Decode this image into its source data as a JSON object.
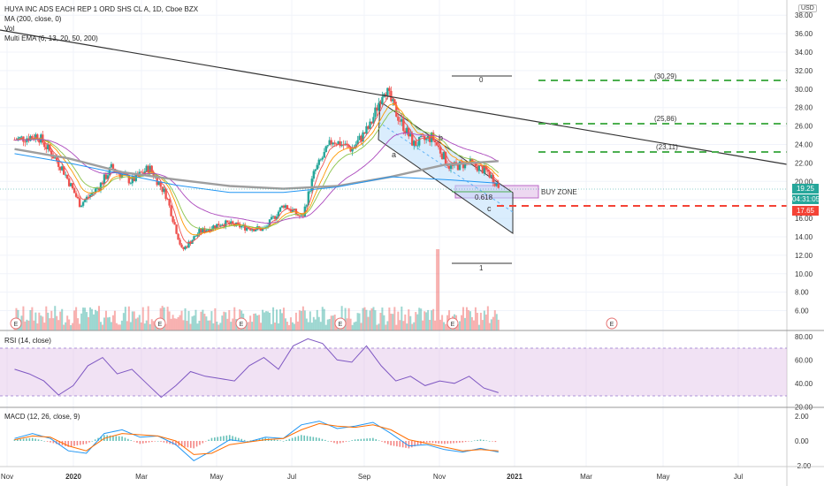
{
  "header": {
    "symbol_title": "HUYA INC ADS EACH REP 1 ORD SHS CL A, 1D, Cboe BZX",
    "indicators": [
      "MA (200, close, 0)",
      "Vol",
      "Multi EMA (6, 13, 20, 50, 200)"
    ],
    "currency": "USD"
  },
  "price_tags": {
    "last": "19.25",
    "countdown": "04:31:05",
    "stop": "17.65"
  },
  "colors": {
    "candle_up": "#26a69a",
    "candle_down": "#ef5350",
    "ma200": "#9e9e9e",
    "ema6": "#ef5350",
    "ema13": "#ff9800",
    "ema20": "#8bc34a",
    "ema50": "#ab47bc",
    "ema200": "#2196f3",
    "rsi": "#7e57c2",
    "macd": "#2196f3",
    "signal": "#ff6d00",
    "target": "#4caf50",
    "stop": "#f44336",
    "channel": "#bbdefb",
    "buy_zone": "#ce93d8"
  },
  "annotations": {
    "buy_zone_label": "BUY ZONE",
    "fib_top": "0",
    "fib_mid": "0.618",
    "fib_bottom": "1",
    "wave_a": "a",
    "wave_b": "b",
    "wave_c": "c",
    "target_1": "(23,11)",
    "target_2": "(25,86)",
    "target_3": "(30,29)",
    "earnings_icon": "E"
  },
  "panels": {
    "rsi_title": "RSI (14, close)",
    "macd_title": "MACD (12, 26, close, 9)"
  },
  "chart_data": [
    {
      "type": "candlestick",
      "title": "HUYA INC ADS EACH REP 1 ORD SHS CL A, 1D, Cboe BZX",
      "x_tick_labels": [
        "Nov",
        "2020",
        "Mar",
        "May",
        "Jul",
        "Sep",
        "Nov",
        "2021",
        "Mar",
        "May",
        "Jul"
      ],
      "y_tick_labels": [
        "6.00",
        "8.00",
        "10.00",
        "12.00",
        "14.00",
        "16.00",
        "18.00",
        "20.00",
        "22.00",
        "24.00",
        "26.00",
        "28.00",
        "30.00",
        "32.00",
        "34.00",
        "36.00",
        "38.00"
      ],
      "ylim": [
        5,
        38.5
      ],
      "price_path": [
        {
          "x": "2019-11-01",
          "y": 24.5
        },
        {
          "x": "2019-11-20",
          "y": 25.0
        },
        {
          "x": "2019-12-10",
          "y": 21.5
        },
        {
          "x": "2019-12-25",
          "y": 17.5
        },
        {
          "x": "2020-01-10",
          "y": 19.5
        },
        {
          "x": "2020-01-20",
          "y": 21.5
        },
        {
          "x": "2020-02-05",
          "y": 20.0
        },
        {
          "x": "2020-02-20",
          "y": 21.5
        },
        {
          "x": "2020-03-05",
          "y": 18.5
        },
        {
          "x": "2020-03-18",
          "y": 12.5
        },
        {
          "x": "2020-04-01",
          "y": 14.5
        },
        {
          "x": "2020-04-20",
          "y": 15.5
        },
        {
          "x": "2020-05-10",
          "y": 15.0
        },
        {
          "x": "2020-05-25",
          "y": 14.8
        },
        {
          "x": "2020-06-10",
          "y": 17.5
        },
        {
          "x": "2020-06-25",
          "y": 16.0
        },
        {
          "x": "2020-07-05",
          "y": 21.0
        },
        {
          "x": "2020-07-20",
          "y": 24.5
        },
        {
          "x": "2020-08-05",
          "y": 23.5
        },
        {
          "x": "2020-08-20",
          "y": 26.0
        },
        {
          "x": "2020-09-01",
          "y": 30.3
        },
        {
          "x": "2020-09-10",
          "y": 27.5
        },
        {
          "x": "2020-09-25",
          "y": 24.0
        },
        {
          "x": "2020-10-10",
          "y": 24.8
        },
        {
          "x": "2020-10-25",
          "y": 21.5
        },
        {
          "x": "2020-11-10",
          "y": 22.0
        },
        {
          "x": "2020-11-25",
          "y": 21.0
        },
        {
          "x": "2020-12-05",
          "y": 19.25
        }
      ],
      "moving_averages": {
        "MA200_trend": [
          23.5,
          22.5,
          21.0,
          20.2,
          19.5,
          19.2,
          19.5,
          20.5,
          21.8,
          22.2
        ],
        "EMA200_trend": [
          23.0,
          22.0,
          20.8,
          19.6,
          18.8,
          18.8,
          19.4,
          20.5,
          20.2,
          19.8
        ]
      },
      "volume_spike": {
        "x": "2020-10-15",
        "y": "max"
      },
      "annotations": {
        "descending_resistance": [
          {
            "x": "2019-11-01",
            "y": 35.0
          },
          {
            "x": "2021-08-01",
            "y": 21.8
          }
        ],
        "buy_zone": {
          "y_range": [
            19.0,
            20.0
          ]
        },
        "stop_level": 17.65,
        "targets": [
          23.11,
          25.86,
          30.29
        ]
      }
    },
    {
      "type": "line",
      "title": "RSI (14, close)",
      "y_tick_labels": [
        "20.00",
        "40.00",
        "60.00",
        "80.00"
      ],
      "ylim": [
        18,
        84
      ],
      "band": [
        30,
        70
      ],
      "values": [
        52,
        48,
        42,
        30,
        38,
        55,
        62,
        48,
        52,
        40,
        28,
        38,
        50,
        46,
        44,
        42,
        55,
        62,
        52,
        72,
        78,
        74,
        60,
        58,
        72,
        55,
        42,
        46,
        38,
        42,
        40,
        46,
        36,
        32
      ]
    },
    {
      "type": "line",
      "title": "MACD (12, 26, close, 9)",
      "y_tick_labels": [
        "0.00",
        "2.00",
        "-2.00"
      ],
      "ylim": [
        -2.4,
        2.4
      ],
      "series": [
        {
          "values": [
            0.2,
            0.6,
            0.2,
            -0.8,
            -1.0,
            0.6,
            0.9,
            0.3,
            0.4,
            -0.3,
            -1.6,
            -0.8,
            0.1,
            -0.1,
            0.3,
            0.2,
            1.3,
            1.6,
            1.0,
            1.2,
            1.5,
            0.6,
            -0.4,
            -0.3,
            -0.7,
            -0.9,
            -0.6,
            -0.9
          ]
        },
        {
          "values": [
            0.1,
            0.4,
            0.3,
            -0.4,
            -0.8,
            0.2,
            0.6,
            0.5,
            0.4,
            0.0,
            -1.1,
            -1.0,
            -0.3,
            -0.1,
            0.1,
            0.2,
            0.9,
            1.4,
            1.2,
            1.1,
            1.3,
            0.9,
            0.1,
            -0.2,
            -0.5,
            -0.8,
            -0.7,
            -0.8
          ]
        }
      ]
    }
  ]
}
